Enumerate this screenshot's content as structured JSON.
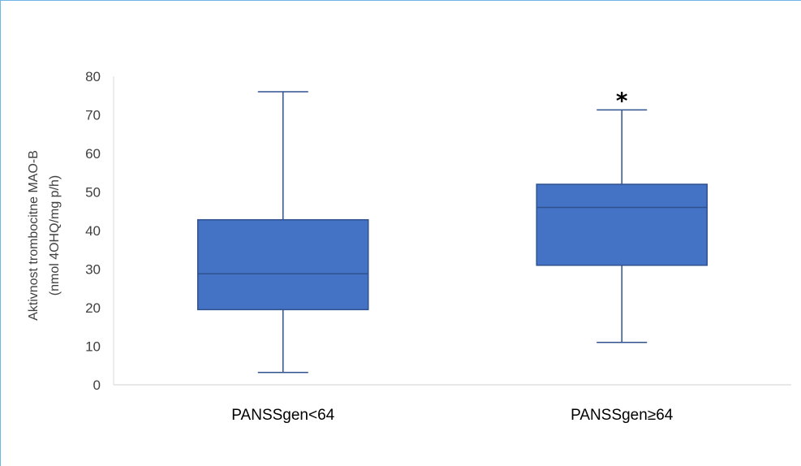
{
  "chart_data": {
    "type": "box",
    "title": "",
    "ylabel_line1": "Aktivnost trombocitne MAO-B",
    "ylabel_line2": "(nmol 4OHQ/mg p/h)",
    "xlabel": "",
    "ylim": [
      0,
      80
    ],
    "yticks": [
      0,
      10,
      20,
      30,
      40,
      50,
      60,
      70,
      80
    ],
    "grid": false,
    "legend": "none",
    "box_color": "#4472c4",
    "edge_color": "#2f528f",
    "categories": [
      "PANSSgen<64",
      "PANSSgen≥64"
    ],
    "boxes": [
      {
        "min": 3.2,
        "q1": 19.5,
        "median": 28.8,
        "q3": 42.8,
        "max": 76
      },
      {
        "min": 11,
        "q1": 31,
        "median": 46,
        "q3": 52,
        "max": 71.3
      }
    ],
    "annotations": [
      {
        "category": "PANSSgen≥64",
        "text": "*"
      }
    ]
  }
}
